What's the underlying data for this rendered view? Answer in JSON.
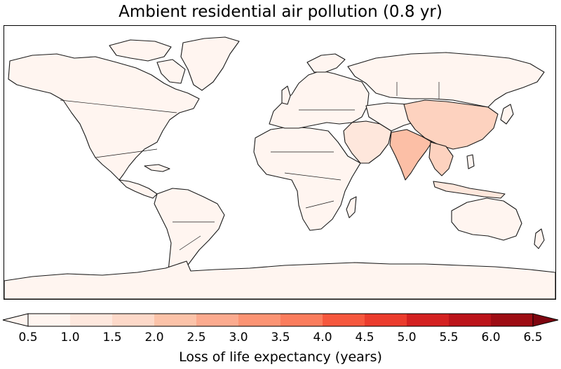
{
  "figure": {
    "title": "Ambient residential air pollution (0.8 yr)"
  },
  "map": {
    "projection": "equirectangular",
    "base_fill": "#fff5f0",
    "land_colors": {
      "default": "#fff5f0",
      "low": "#fee7dc",
      "medium": "#fdd2bf",
      "high": "#fcbfa6"
    },
    "regions": [
      {
        "name": "India",
        "level": "high"
      },
      {
        "name": "China",
        "level": "medium"
      },
      {
        "name": "Southeast Asia",
        "level": "medium"
      },
      {
        "name": "Middle East",
        "level": "low"
      },
      {
        "name": "East Africa",
        "level": "low"
      }
    ]
  },
  "colorbar": {
    "label": "Loss of life expectancy (years)",
    "ticks": [
      "0.5",
      "1.0",
      "1.5",
      "2.0",
      "2.5",
      "3.0",
      "3.5",
      "4.0",
      "4.5",
      "5.0",
      "5.5",
      "6.0",
      "6.5"
    ],
    "min": 0.5,
    "max": 6.5,
    "extend": "both",
    "colors": [
      "#fff5f0",
      "#fee8de",
      "#fdd9c9",
      "#fcc3a9",
      "#fcab8f",
      "#fc9474",
      "#fb7d5d",
      "#f6583e",
      "#eb3c2d",
      "#d42121",
      "#bc141a",
      "#9e0d14",
      "#7f0610"
    ]
  }
}
